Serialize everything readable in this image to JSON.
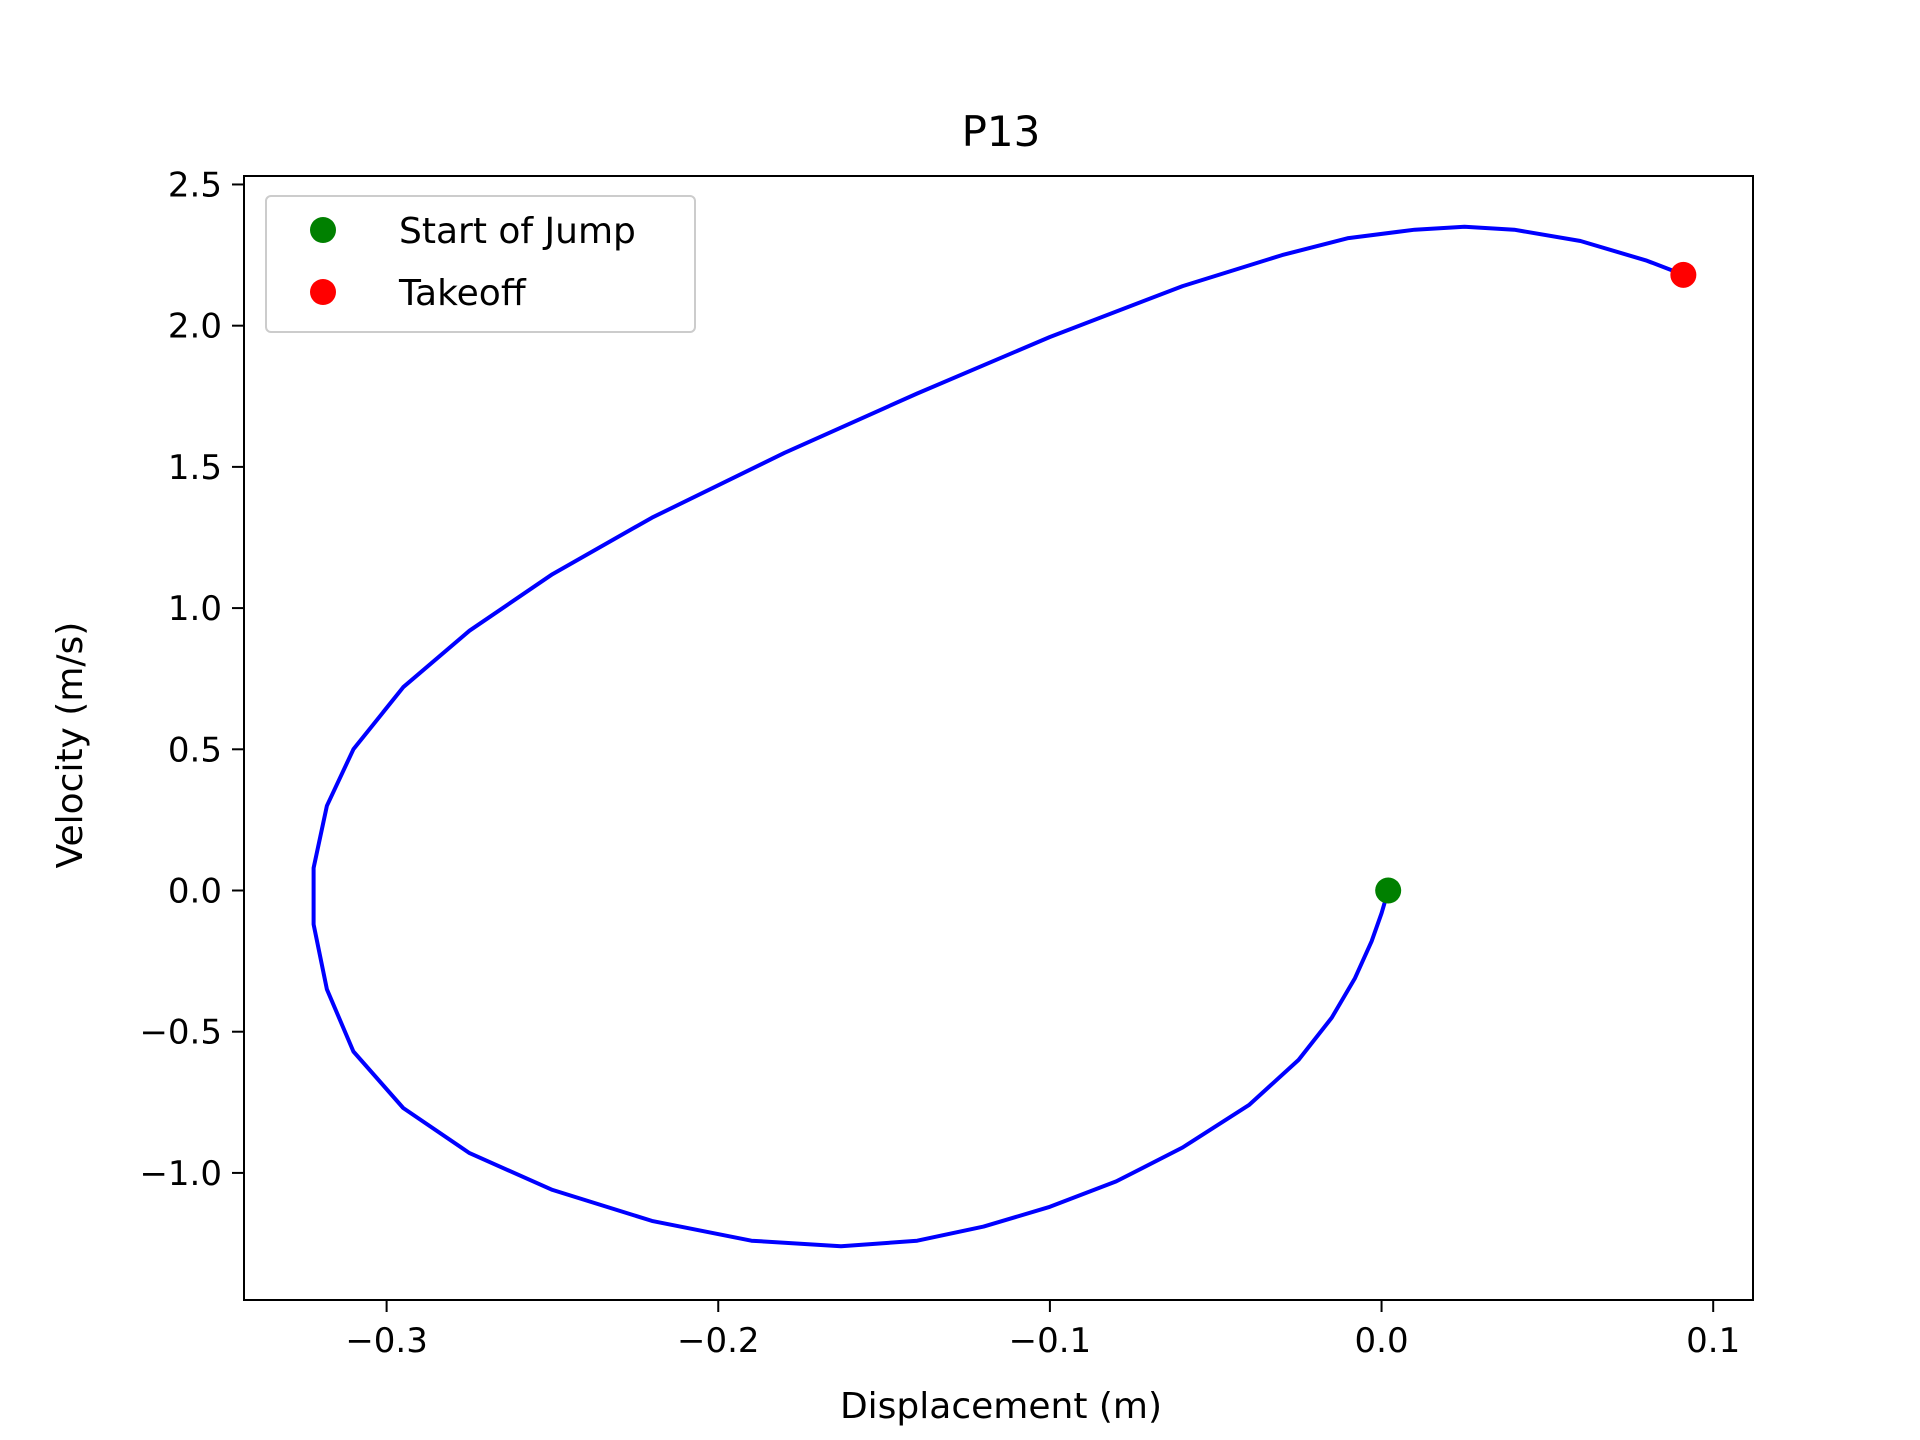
{
  "chart_data": {
    "type": "line",
    "title": "P13",
    "xlabel": "Displacement (m)",
    "ylabel": "Velocity (m/s)",
    "xlim": [
      -0.343,
      0.112
    ],
    "ylim": [
      -1.45,
      2.53
    ],
    "xticks": [
      -0.3,
      -0.2,
      -0.1,
      0.0,
      0.1
    ],
    "xtick_labels": [
      "−0.3",
      "−0.2",
      "−0.1",
      "0.0",
      "0.1"
    ],
    "yticks": [
      -1.0,
      -0.5,
      0.0,
      0.5,
      1.0,
      1.5,
      2.0,
      2.5
    ],
    "ytick_labels": [
      "−1.0",
      "−0.5",
      "0.0",
      "0.5",
      "1.0",
      "1.5",
      "2.0",
      "2.5"
    ],
    "grid": false,
    "legend_position": "upper-left",
    "series": [
      {
        "color": "#0000ff",
        "x": [
          0.002,
          0.0,
          -0.003,
          -0.008,
          -0.015,
          -0.025,
          -0.04,
          -0.06,
          -0.08,
          -0.1,
          -0.12,
          -0.14,
          -0.163,
          -0.19,
          -0.22,
          -0.25,
          -0.275,
          -0.295,
          -0.31,
          -0.318,
          -0.322,
          -0.322,
          -0.318,
          -0.31,
          -0.295,
          -0.275,
          -0.25,
          -0.22,
          -0.18,
          -0.14,
          -0.1,
          -0.06,
          -0.03,
          -0.01,
          0.01,
          0.025,
          0.04,
          0.06,
          0.08,
          0.091
        ],
        "y": [
          0.0,
          -0.08,
          -0.18,
          -0.31,
          -0.45,
          -0.6,
          -0.76,
          -0.91,
          -1.03,
          -1.12,
          -1.19,
          -1.24,
          -1.26,
          -1.24,
          -1.17,
          -1.06,
          -0.93,
          -0.77,
          -0.57,
          -0.35,
          -0.12,
          0.08,
          0.3,
          0.5,
          0.72,
          0.92,
          1.12,
          1.32,
          1.55,
          1.76,
          1.96,
          2.14,
          2.25,
          2.31,
          2.34,
          2.35,
          2.34,
          2.3,
          2.23,
          2.18
        ]
      }
    ],
    "markers": [
      {
        "name": "Start of Jump",
        "x": 0.002,
        "y": 0.0,
        "color": "#008000"
      },
      {
        "name": "Takeoff",
        "x": 0.091,
        "y": 2.18,
        "color": "#ff0000"
      }
    ]
  }
}
